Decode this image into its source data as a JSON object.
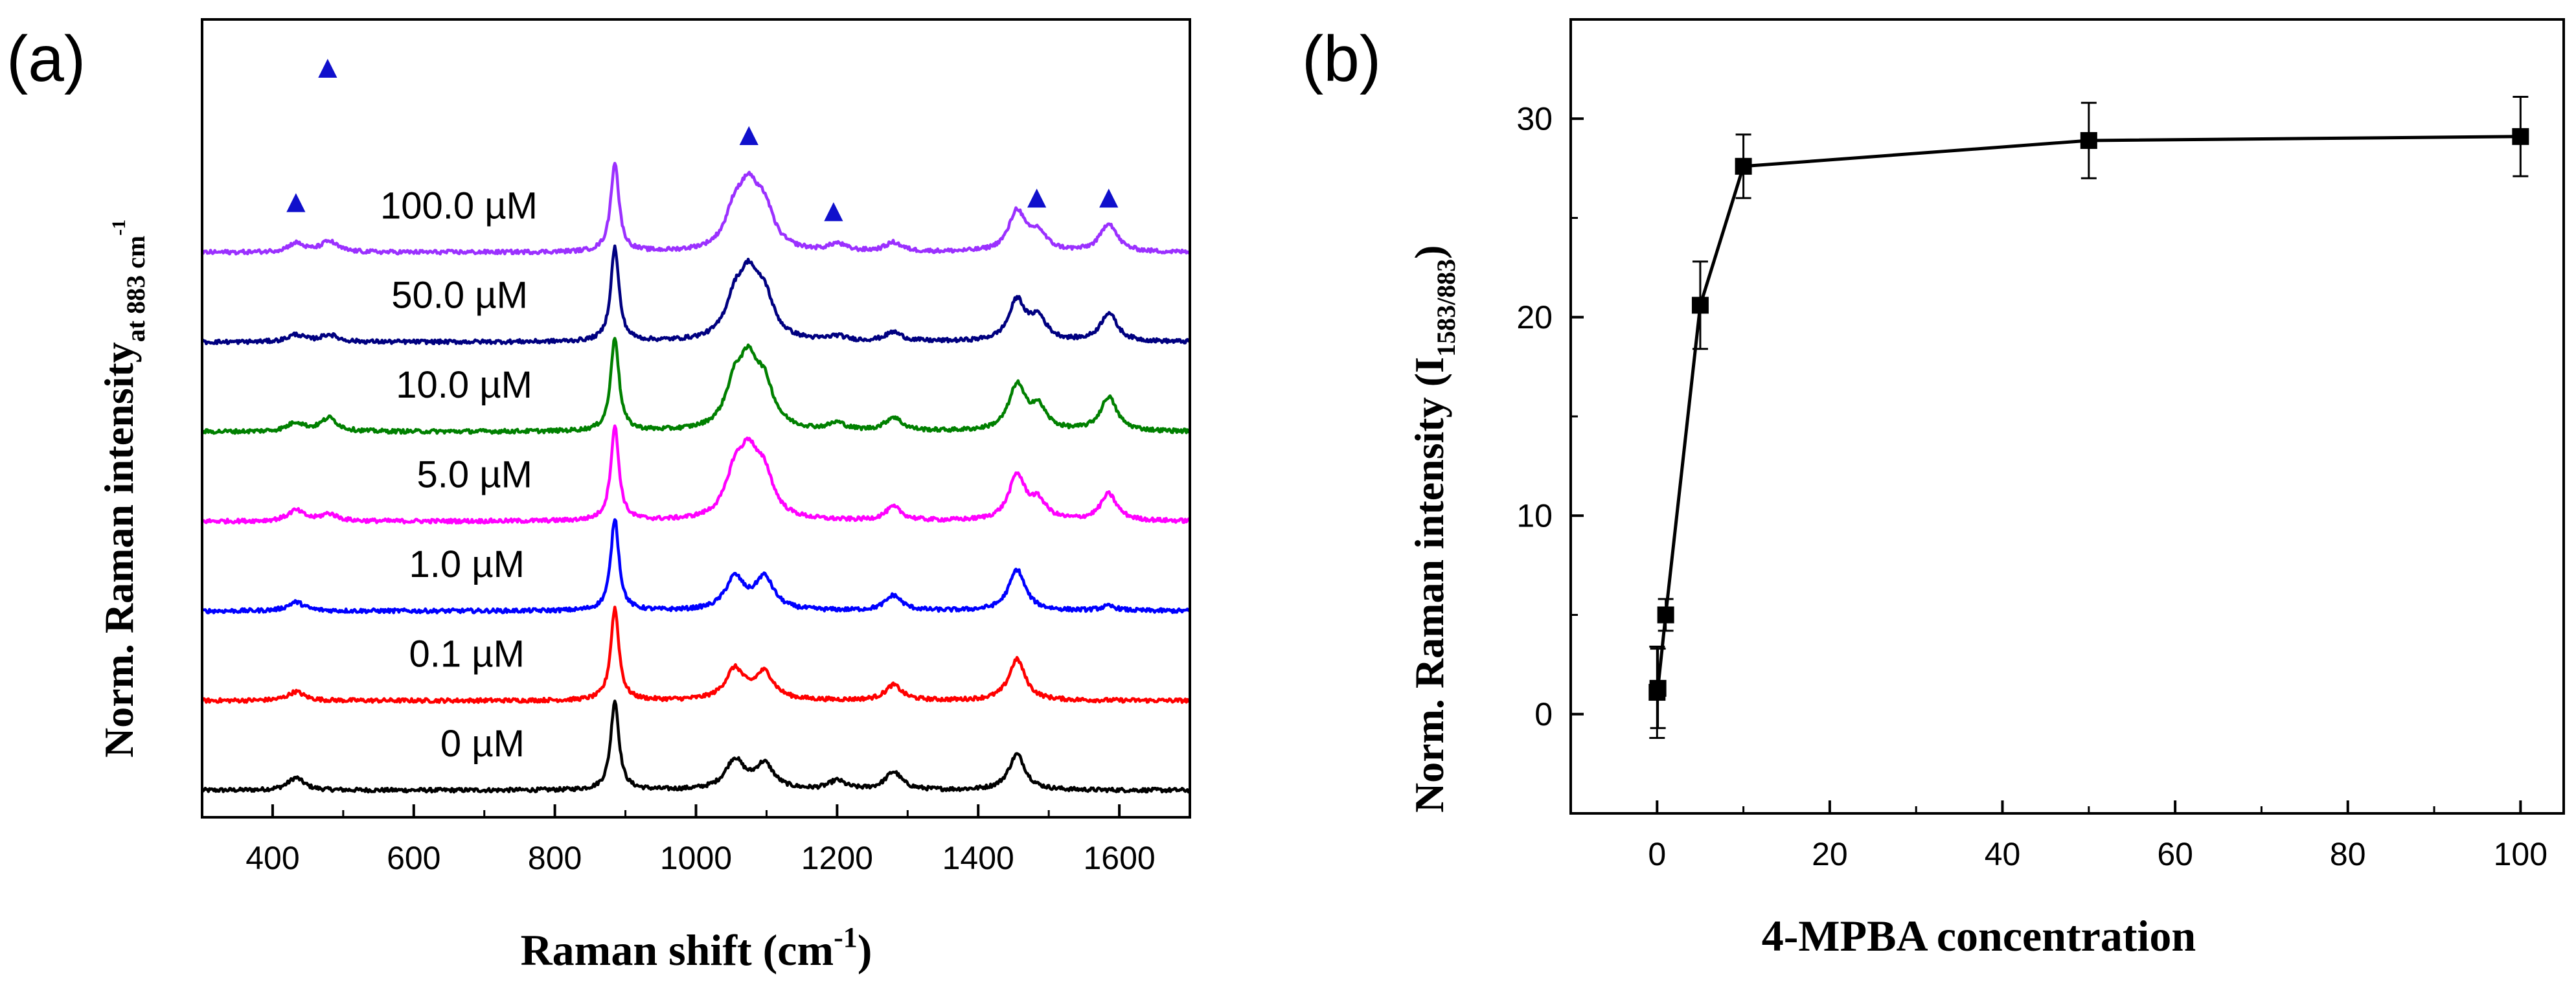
{
  "chart_data": [
    {
      "type": "line",
      "panel_label": "(a)",
      "title": "",
      "xlabel": "Raman shift (cm",
      "xlabel_sup": "-1",
      "xlabel_close": ")",
      "ylabel": "Norm. Raman intensity",
      "ylabel_sub": "at 883 cm",
      "ylabel_sub_sup": "-1",
      "xlim": [
        300,
        1700
      ],
      "xticks": [
        "400",
        "600",
        "800",
        "1000",
        "1200",
        "1400",
        "1600"
      ],
      "x_tick_values": [
        400,
        600,
        800,
        1000,
        1200,
        1400,
        1600
      ],
      "y_ticks_shown": false,
      "y_range_units": [
        -0.3,
        8.6
      ],
      "peak_positions_cm": [
        433,
        480,
        885,
        1055,
        1075,
        1097,
        1200,
        1280,
        1455,
        1485,
        1585
      ],
      "marker_positions": [
        {
          "x": 433,
          "y": 6.45,
          "label": "▲"
        },
        {
          "x": 478,
          "y": 7.95,
          "label": "▲"
        },
        {
          "x": 1075,
          "y": 7.2,
          "label": "▲"
        },
        {
          "x": 1195,
          "y": 6.35,
          "label": "▲"
        },
        {
          "x": 1483,
          "y": 6.5,
          "label": "▲"
        },
        {
          "x": 1585,
          "y": 6.5,
          "label": "▲"
        }
      ],
      "marker_color": "#1010cc",
      "series": [
        {
          "name": "0 µM",
          "label": "0 µM",
          "color": "#000000",
          "offset": 0.0,
          "peaks": [
            [
              433,
              0.14
            ],
            [
              885,
              1.0
            ],
            [
              1055,
              0.33
            ],
            [
              1097,
              0.28
            ],
            [
              1200,
              0.1
            ],
            [
              1280,
              0.2
            ],
            [
              1455,
              0.4
            ]
          ]
        },
        {
          "name": "0.1 µM",
          "label": "0.1 µM",
          "color": "#ff0000",
          "offset": 1.0,
          "peaks": [
            [
              433,
              0.1
            ],
            [
              885,
              1.03
            ],
            [
              1055,
              0.34
            ],
            [
              1097,
              0.3
            ],
            [
              1280,
              0.17
            ],
            [
              1455,
              0.46
            ]
          ]
        },
        {
          "name": "1.0 µM",
          "label": "1.0 µM",
          "color": "#0000ff",
          "offset": 2.0,
          "peaks": [
            [
              433,
              0.1
            ],
            [
              885,
              1.03
            ],
            [
              1055,
              0.36
            ],
            [
              1097,
              0.36
            ],
            [
              1280,
              0.17
            ],
            [
              1455,
              0.46
            ],
            [
              1585,
              0.05
            ]
          ]
        },
        {
          "name": "5.0 µM",
          "label": "5.0 µM",
          "color": "#ff00ff",
          "offset": 3.0,
          "peaks": [
            [
              433,
              0.12
            ],
            [
              480,
              0.08
            ],
            [
              885,
              1.05
            ],
            [
              1055,
              0.45
            ],
            [
              1075,
              0.6
            ],
            [
              1097,
              0.43
            ],
            [
              1280,
              0.15
            ],
            [
              1455,
              0.5
            ],
            [
              1485,
              0.2
            ],
            [
              1585,
              0.3
            ]
          ]
        },
        {
          "name": "10.0 µM",
          "label": "10.0 µM",
          "color": "#008000",
          "offset": 4.0,
          "peaks": [
            [
              433,
              0.1
            ],
            [
              480,
              0.15
            ],
            [
              885,
              1.05
            ],
            [
              1055,
              0.45
            ],
            [
              1075,
              0.62
            ],
            [
              1097,
              0.43
            ],
            [
              1200,
              0.08
            ],
            [
              1280,
              0.15
            ],
            [
              1455,
              0.5
            ],
            [
              1485,
              0.25
            ],
            [
              1585,
              0.38
            ]
          ]
        },
        {
          "name": "50.0 µM",
          "label": "50.0 µM",
          "color": "#000080",
          "offset": 5.0,
          "peaks": [
            [
              433,
              0.08
            ],
            [
              480,
              0.08
            ],
            [
              885,
              1.05
            ],
            [
              1055,
              0.4
            ],
            [
              1075,
              0.6
            ],
            [
              1097,
              0.43
            ],
            [
              1200,
              0.05
            ],
            [
              1280,
              0.1
            ],
            [
              1455,
              0.45
            ],
            [
              1485,
              0.25
            ],
            [
              1585,
              0.32
            ]
          ]
        },
        {
          "name": "100.0 µM",
          "label": "100.0 µM",
          "color": "#9b30ff",
          "offset": 6.0,
          "peaks": [
            [
              433,
              0.1
            ],
            [
              480,
              0.12
            ],
            [
              885,
              1.0
            ],
            [
              1055,
              0.4
            ],
            [
              1075,
              0.58
            ],
            [
              1097,
              0.42
            ],
            [
              1200,
              0.08
            ],
            [
              1280,
              0.1
            ],
            [
              1455,
              0.45
            ],
            [
              1485,
              0.2
            ],
            [
              1585,
              0.32
            ]
          ]
        }
      ]
    },
    {
      "type": "line",
      "panel_label": "(b)",
      "title": "",
      "xlabel": "4-MPBA concentration",
      "ylabel": "Norm. Raman intensity (I",
      "ylabel_sub": "1583/883",
      "ylabel_close": ")",
      "xlim": [
        -10,
        105
      ],
      "ylim": [
        -5,
        35
      ],
      "xticks": [
        "0",
        "20",
        "40",
        "60",
        "80",
        "100"
      ],
      "x_tick_values": [
        0,
        20,
        40,
        60,
        80,
        100
      ],
      "yticks": [
        "0",
        "10",
        "20",
        "30"
      ],
      "y_tick_values": [
        0,
        10,
        20,
        30
      ],
      "series": [
        {
          "name": "I1583/883",
          "marker": "square",
          "x": [
            0,
            0.1,
            1,
            5,
            10,
            50,
            100
          ],
          "y": [
            1.1,
            1.3,
            5.0,
            20.6,
            27.6,
            28.9,
            29.1
          ],
          "err": [
            2.3,
            2.0,
            0.8,
            2.2,
            1.6,
            1.9,
            2.0
          ]
        }
      ]
    }
  ]
}
